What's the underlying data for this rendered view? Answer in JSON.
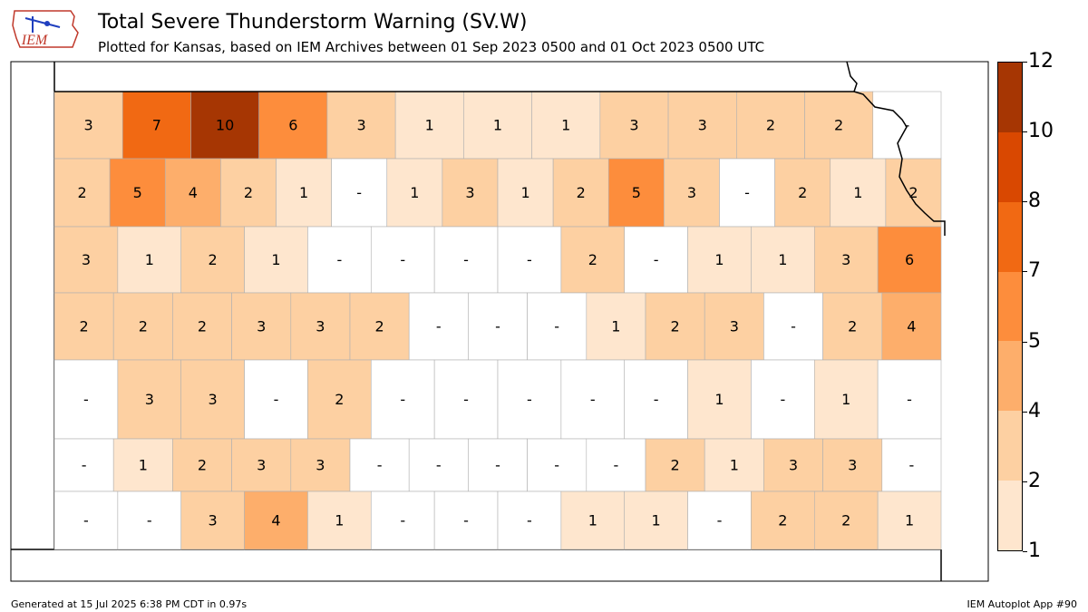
{
  "header": {
    "title": "Total Severe Thunderstorm Warning (SV.W)",
    "subtitle": "Plotted for Kansas, based on IEM Archives  between 01 Sep 2023 0500 and 01 Oct 2023 0500 UTC",
    "logo_text": "IEM"
  },
  "footer": {
    "generated": "Generated at 15 Jul 2025 6:38 PM CDT in 0.97s",
    "app": "IEM Autoplot App #90"
  },
  "colorbar": {
    "ticks": [
      "1",
      "2",
      "4",
      "5",
      "7",
      "8",
      "10",
      "12"
    ],
    "colors": [
      "#fee6ce",
      "#fdd0a2",
      "#fdae6b",
      "#fd8d3c",
      "#f16913",
      "#d94801",
      "#a63603"
    ]
  },
  "map": {
    "no_data_label": "-",
    "counties": [
      [
        "3",
        "7",
        "10",
        "6",
        "3",
        "1",
        "1",
        "1",
        "3",
        "3",
        "2",
        "2",
        "-"
      ],
      [
        "2",
        "5",
        "4",
        "2",
        "1",
        "-",
        "1",
        "3",
        "1",
        "2",
        "5",
        "3",
        "-",
        "2",
        "1",
        "2"
      ],
      [
        "3",
        "1",
        "2",
        "1",
        "-",
        "-",
        "-",
        "-",
        "2",
        "-",
        "1",
        "1",
        "3",
        "6"
      ],
      [
        "2",
        "2",
        "2",
        "3",
        "3",
        "2",
        "-",
        "-",
        "-",
        "1",
        "2",
        "3",
        "-",
        "2",
        "4"
      ],
      [
        "-",
        "3",
        "3",
        "-",
        "2",
        "-",
        "-",
        "-",
        "-",
        "-",
        "1",
        "-",
        "1",
        "-"
      ],
      [
        "-",
        "1",
        "2",
        "3",
        "3",
        "-",
        "-",
        "-",
        "-",
        "-",
        "2",
        "1",
        "3",
        "3",
        "-"
      ],
      [
        "-",
        "-",
        "3",
        "4",
        "1",
        "-",
        "-",
        "-",
        "1",
        "1",
        "-",
        "2",
        "2",
        "1"
      ]
    ]
  }
}
